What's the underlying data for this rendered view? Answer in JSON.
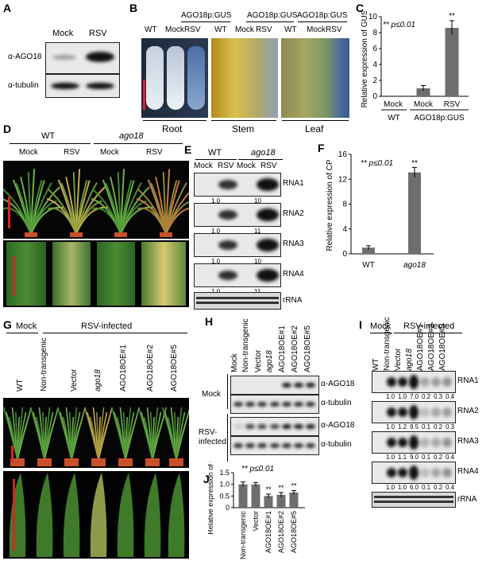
{
  "panels": {
    "A": {
      "label": "A",
      "cols": [
        "Mock",
        "RSV"
      ],
      "rows": [
        "α-AGO18",
        "α-tubulin"
      ]
    },
    "B": {
      "label": "B",
      "headers": [
        "AGO18p:GUS",
        "AGO18p:GUS",
        "AGO18p:GUS"
      ],
      "cols": [
        "WT",
        "Mock",
        "RSV",
        "WT",
        "Mock",
        "RSV",
        "WT",
        "Mock",
        "RSV"
      ],
      "tissues": [
        "Root",
        "Stem",
        "Leaf"
      ]
    },
    "C": {
      "label": "C",
      "ylabel": "Relative expression of GUS",
      "sig": "** p≤0.01",
      "star": "**",
      "xcats": [
        "Mock",
        "Mock",
        "RSV"
      ],
      "groups": [
        "WT",
        "AGO18p:GUS"
      ],
      "yticks": [
        "0",
        "2",
        "4",
        "6",
        "8",
        "10"
      ]
    },
    "D": {
      "label": "D",
      "groups": [
        "WT",
        "ago18"
      ],
      "cols": [
        "Mock",
        "RSV",
        "Mock",
        "RSV"
      ]
    },
    "E": {
      "label": "E",
      "groups": [
        "WT",
        "ago18"
      ],
      "cols": [
        "Mock",
        "RSV",
        "Mock",
        "RSV"
      ],
      "rnas": [
        "RNA1",
        "RNA2",
        "RNA3",
        "RNA4"
      ],
      "rrna": "rRNA",
      "quant": [
        [
          "1.0",
          "10"
        ],
        [
          "1.0",
          "11"
        ],
        [
          "1.0",
          "10"
        ],
        [
          "1.0",
          "11"
        ]
      ]
    },
    "F": {
      "label": "F",
      "ylabel": "Relative expression of CP",
      "sig": "** p≤0.01",
      "star": "**",
      "xcats": [
        "WT",
        "ago18"
      ],
      "yticks": [
        "0",
        "4",
        "8",
        "12",
        "16"
      ]
    },
    "G": {
      "label": "G",
      "mock": "Mock",
      "rsv": "RSV-infected",
      "cols": [
        "WT",
        "Non-transgenic",
        "Vector",
        "ago18",
        "AGO18OE#1",
        "AGO18OE#2",
        "AGO18OE#5"
      ]
    },
    "H": {
      "label": "H",
      "cols": [
        "Mock",
        "Non-transgenic",
        "Vector",
        "ago18",
        "AGO18OE#1",
        "AGO18OE#2",
        "AGO18OE#5"
      ],
      "rowgroups": [
        "Mock",
        "RSV-\ninfected"
      ],
      "rows": [
        "α-AGO18",
        "α-tubulin",
        "α-AGO18",
        "α-tubulin"
      ]
    },
    "I": {
      "label": "I",
      "mock": "Mock",
      "rsv": "RSV-infected",
      "cols": [
        "WT",
        "Non-transgenic",
        "Vector",
        "ago18",
        "AGO18OE#1",
        "AGO18OE#2",
        "AGO18OE#5"
      ],
      "rnas": [
        "RNA1",
        "RNA2",
        "RNA3",
        "RNA4"
      ],
      "rrna": "rRNA",
      "quant": [
        [
          "1.0",
          "1.0",
          "7.0",
          "0.2",
          "0.3",
          "0.4"
        ],
        [
          "1.0",
          "1.2",
          "9.5",
          "0.1",
          "0.2",
          "0.3"
        ],
        [
          "1.0",
          "1.1",
          "9.0",
          "0.1",
          "0.2",
          "0.4"
        ],
        [
          "1.0",
          "1.0",
          "6.0",
          "0.1",
          "0.2",
          "0.4"
        ]
      ]
    },
    "J": {
      "label": "J",
      "ylabel": "Relative expression of CP",
      "sig": "** p≤0.01",
      "xcats": [
        "Non-transgenic",
        "Vector",
        "AGO18OE#1",
        "AGO18OE#2",
        "AGO18OE#5"
      ],
      "yticks": [
        "0",
        "0.5",
        "1.0",
        "1.5"
      ],
      "star": "**"
    }
  },
  "chart_data": [
    {
      "type": "bar",
      "categories": [
        "Mock",
        "Mock",
        "RSV"
      ],
      "values": [
        0.0,
        1.0,
        8.6
      ],
      "errors": [
        0,
        0.35,
        0.9
      ],
      "ylabel": "Relative expression of GUS",
      "ylim": [
        0,
        10
      ]
    },
    {
      "type": "bar",
      "categories": [
        "WT",
        "ago18"
      ],
      "values": [
        1.0,
        13.1
      ],
      "errors": [
        0.3,
        0.8
      ],
      "ylabel": "Relative expression of CP",
      "ylim": [
        0,
        16
      ]
    },
    {
      "type": "bar",
      "categories": [
        "Non-transgenic",
        "Vector",
        "AGO18OE#1",
        "AGO18OE#2",
        "AGO18OE#5"
      ],
      "values": [
        1.0,
        1.0,
        0.5,
        0.55,
        0.65
      ],
      "errors": [
        0.1,
        0.08,
        0.08,
        0.1,
        0.08
      ],
      "ylabel": "Relative expression of CP",
      "ylim": [
        0,
        1.5
      ]
    }
  ]
}
